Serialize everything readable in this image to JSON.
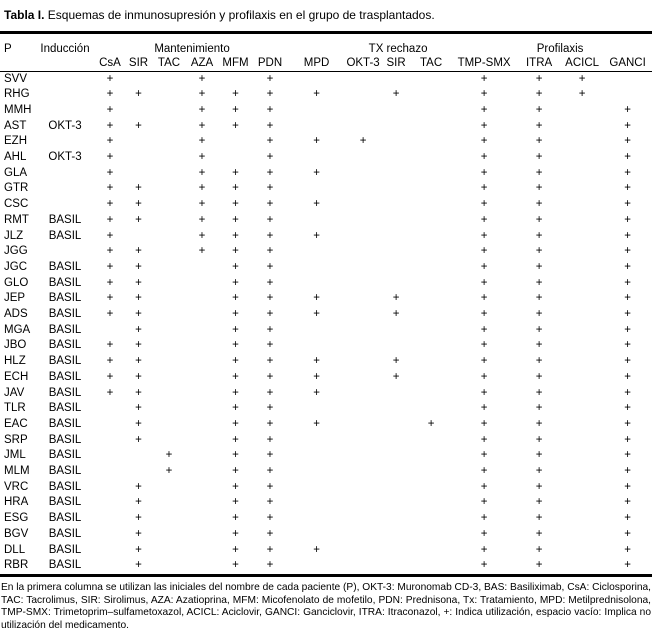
{
  "title": {
    "label": "Tabla I.",
    "text": "Esquemas de inmunosupresión y profilaxis en el grupo de trasplantados."
  },
  "table": {
    "corner_header": "P",
    "induction_header": "Inducción",
    "group_headers": {
      "maintenance": "Mantenimiento",
      "tx_rejection": "TX rechazo",
      "prophylaxis": "Profilaxis"
    },
    "drug_columns": [
      "CsA",
      "SIR",
      "TAC",
      "AZA",
      "MFM",
      "PDN",
      "MPD",
      "OKT-3",
      "SIR",
      "TAC",
      "TMP-SMX",
      "ITRA",
      "ACICL",
      "GANCI"
    ],
    "mark_symbol": "+",
    "rows": [
      {
        "p": "SVV",
        "induction": "",
        "marks": [
          1,
          0,
          0,
          1,
          0,
          1,
          0,
          0,
          0,
          0,
          1,
          1,
          1,
          0
        ]
      },
      {
        "p": "RHG",
        "induction": "",
        "marks": [
          1,
          1,
          0,
          1,
          1,
          1,
          1,
          0,
          1,
          0,
          1,
          1,
          1,
          0
        ]
      },
      {
        "p": "MMH",
        "induction": "",
        "marks": [
          1,
          0,
          0,
          1,
          1,
          1,
          0,
          0,
          0,
          0,
          1,
          1,
          0,
          1
        ]
      },
      {
        "p": "AST",
        "induction": "OKT-3",
        "marks": [
          1,
          1,
          0,
          1,
          1,
          1,
          0,
          0,
          0,
          0,
          1,
          1,
          0,
          1
        ]
      },
      {
        "p": "EZH",
        "induction": "",
        "marks": [
          1,
          0,
          0,
          1,
          0,
          1,
          1,
          1,
          0,
          0,
          1,
          1,
          0,
          1
        ]
      },
      {
        "p": "AHL",
        "induction": "OKT-3",
        "marks": [
          1,
          0,
          0,
          1,
          0,
          1,
          0,
          0,
          0,
          0,
          1,
          1,
          0,
          1
        ]
      },
      {
        "p": "GLA",
        "induction": "",
        "marks": [
          1,
          0,
          0,
          1,
          1,
          1,
          1,
          0,
          0,
          0,
          1,
          1,
          0,
          1
        ]
      },
      {
        "p": "GTR",
        "induction": "",
        "marks": [
          1,
          1,
          0,
          1,
          1,
          1,
          0,
          0,
          0,
          0,
          1,
          1,
          0,
          1
        ]
      },
      {
        "p": "CSC",
        "induction": "",
        "marks": [
          1,
          1,
          0,
          1,
          1,
          1,
          1,
          0,
          0,
          0,
          1,
          1,
          0,
          1
        ]
      },
      {
        "p": "RMT",
        "induction": "BASIL",
        "marks": [
          1,
          1,
          0,
          1,
          1,
          1,
          0,
          0,
          0,
          0,
          1,
          1,
          0,
          1
        ]
      },
      {
        "p": "JLZ",
        "induction": "BASIL",
        "marks": [
          1,
          0,
          0,
          1,
          1,
          1,
          1,
          0,
          0,
          0,
          1,
          1,
          0,
          1
        ]
      },
      {
        "p": "JGG",
        "induction": "",
        "marks": [
          1,
          1,
          0,
          1,
          1,
          1,
          0,
          0,
          0,
          0,
          1,
          1,
          0,
          1
        ]
      },
      {
        "p": "JGC",
        "induction": "BASIL",
        "marks": [
          1,
          1,
          0,
          0,
          1,
          1,
          0,
          0,
          0,
          0,
          1,
          1,
          0,
          1
        ]
      },
      {
        "p": "GLO",
        "induction": "BASIL",
        "marks": [
          1,
          1,
          0,
          0,
          1,
          1,
          0,
          0,
          0,
          0,
          1,
          1,
          0,
          1
        ]
      },
      {
        "p": "JEP",
        "induction": "BASIL",
        "marks": [
          1,
          1,
          0,
          0,
          1,
          1,
          1,
          0,
          1,
          0,
          1,
          1,
          0,
          1
        ]
      },
      {
        "p": "ADS",
        "induction": "BASIL",
        "marks": [
          1,
          1,
          0,
          0,
          1,
          1,
          1,
          0,
          1,
          0,
          1,
          1,
          0,
          1
        ]
      },
      {
        "p": "MGA",
        "induction": "BASIL",
        "marks": [
          0,
          1,
          0,
          0,
          1,
          1,
          0,
          0,
          0,
          0,
          1,
          1,
          0,
          1
        ]
      },
      {
        "p": "JBO",
        "induction": "BASIL",
        "marks": [
          1,
          1,
          0,
          0,
          1,
          1,
          0,
          0,
          0,
          0,
          1,
          1,
          0,
          1
        ]
      },
      {
        "p": "HLZ",
        "induction": "BASIL",
        "marks": [
          1,
          1,
          0,
          0,
          1,
          1,
          1,
          0,
          1,
          0,
          1,
          1,
          0,
          1
        ]
      },
      {
        "p": "ECH",
        "induction": "BASIL",
        "marks": [
          1,
          1,
          0,
          0,
          1,
          1,
          1,
          0,
          1,
          0,
          1,
          1,
          0,
          1
        ]
      },
      {
        "p": "JAV",
        "induction": "BASIL",
        "marks": [
          1,
          1,
          0,
          0,
          1,
          1,
          1,
          0,
          0,
          0,
          1,
          1,
          0,
          1
        ]
      },
      {
        "p": "TLR",
        "induction": "BASIL",
        "marks": [
          0,
          1,
          0,
          0,
          1,
          1,
          0,
          0,
          0,
          0,
          1,
          1,
          0,
          1
        ]
      },
      {
        "p": "EAC",
        "induction": "BASIL",
        "marks": [
          0,
          1,
          0,
          0,
          1,
          1,
          1,
          0,
          0,
          1,
          1,
          1,
          0,
          1
        ]
      },
      {
        "p": "SRP",
        "induction": "BASIL",
        "marks": [
          0,
          1,
          0,
          0,
          1,
          1,
          0,
          0,
          0,
          0,
          1,
          1,
          0,
          1
        ]
      },
      {
        "p": "JML",
        "induction": "BASIL",
        "marks": [
          0,
          0,
          1,
          0,
          1,
          1,
          0,
          0,
          0,
          0,
          1,
          1,
          0,
          1
        ]
      },
      {
        "p": "MLM",
        "induction": "BASIL",
        "marks": [
          0,
          0,
          1,
          0,
          1,
          1,
          0,
          0,
          0,
          0,
          1,
          1,
          0,
          1
        ]
      },
      {
        "p": "VRC",
        "induction": "BASIL",
        "marks": [
          0,
          1,
          0,
          0,
          1,
          1,
          0,
          0,
          0,
          0,
          1,
          1,
          0,
          1
        ]
      },
      {
        "p": "HRA",
        "induction": "BASIL",
        "marks": [
          0,
          1,
          0,
          0,
          1,
          1,
          0,
          0,
          0,
          0,
          1,
          1,
          0,
          1
        ]
      },
      {
        "p": "ESG",
        "induction": "BASIL",
        "marks": [
          0,
          1,
          0,
          0,
          1,
          1,
          0,
          0,
          0,
          0,
          1,
          1,
          0,
          1
        ]
      },
      {
        "p": "BGV",
        "induction": "BASIL",
        "marks": [
          0,
          1,
          0,
          0,
          1,
          1,
          0,
          0,
          0,
          0,
          1,
          1,
          0,
          1
        ]
      },
      {
        "p": "DLL",
        "induction": "BASIL",
        "marks": [
          0,
          1,
          0,
          0,
          1,
          1,
          1,
          0,
          0,
          0,
          1,
          1,
          0,
          1
        ]
      },
      {
        "p": "RBR",
        "induction": "BASIL",
        "marks": [
          0,
          1,
          0,
          0,
          1,
          1,
          0,
          0,
          0,
          0,
          1,
          1,
          0,
          1
        ]
      }
    ]
  },
  "footnote": "En la primera columna se utilizan las iniciales del nombre de cada paciente (P), OKT-3: Muronomab CD-3, BAS: Basiliximab, CsA: Ciclosporina, TAC: Tacrolimus, SIR: Sirolimus, AZA: Azatioprina, MFM: Micofenolato de mofetilo, PDN: Prednisona, Tx: Tratamiento, MPD: Metilprednisolona, TMP-SMX: Trimetoprim–sulfametoxazol, ACICL: Aciclovir, GANCI: Ganciclovir, ITRA: Itraconazol, +: Indica utilización, espacio vacío: Implica no utilización del medicamento."
}
